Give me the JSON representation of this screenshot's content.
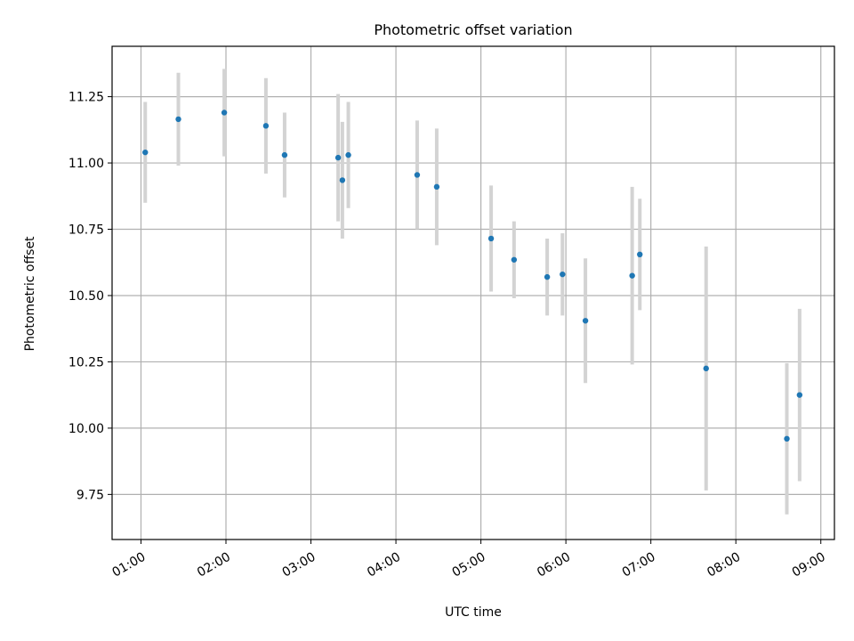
{
  "chart_data": {
    "type": "scatter",
    "title": "Photometric offset variation",
    "xlabel": "UTC time",
    "ylabel": "Photometric offset",
    "x_unit": "hours UTC",
    "xlim": [
      0.66,
      9.16
    ],
    "ylim": [
      9.58,
      11.44
    ],
    "x_ticks": [
      {
        "value": 1,
        "label": "01:00"
      },
      {
        "value": 2,
        "label": "02:00"
      },
      {
        "value": 3,
        "label": "03:00"
      },
      {
        "value": 4,
        "label": "04:00"
      },
      {
        "value": 5,
        "label": "05:00"
      },
      {
        "value": 6,
        "label": "06:00"
      },
      {
        "value": 7,
        "label": "07:00"
      },
      {
        "value": 8,
        "label": "08:00"
      },
      {
        "value": 9,
        "label": "09:00"
      }
    ],
    "y_ticks": [
      {
        "value": 9.75,
        "label": "9.75"
      },
      {
        "value": 10.0,
        "label": "10.00"
      },
      {
        "value": 10.25,
        "label": "10.25"
      },
      {
        "value": 10.5,
        "label": "10.50"
      },
      {
        "value": 10.75,
        "label": "10.75"
      },
      {
        "value": 11.0,
        "label": "11.00"
      },
      {
        "value": 11.25,
        "label": "11.25"
      }
    ],
    "grid": true,
    "point_color": "#1f77b4",
    "errorbar_color": "#d3d3d3",
    "series": [
      {
        "points": [
          {
            "x": 1.05,
            "y": 11.04,
            "err": 0.19
          },
          {
            "x": 1.44,
            "y": 11.165,
            "err": 0.175
          },
          {
            "x": 1.98,
            "y": 11.19,
            "err": 0.165
          },
          {
            "x": 2.47,
            "y": 11.14,
            "err": 0.18
          },
          {
            "x": 2.69,
            "y": 11.03,
            "err": 0.16
          },
          {
            "x": 3.32,
            "y": 11.02,
            "err": 0.24
          },
          {
            "x": 3.37,
            "y": 10.935,
            "err": 0.22
          },
          {
            "x": 3.44,
            "y": 11.03,
            "err": 0.2
          },
          {
            "x": 4.25,
            "y": 10.955,
            "err": 0.205
          },
          {
            "x": 4.48,
            "y": 10.91,
            "err": 0.22
          },
          {
            "x": 5.12,
            "y": 10.715,
            "err": 0.2
          },
          {
            "x": 5.39,
            "y": 10.635,
            "err": 0.145
          },
          {
            "x": 5.78,
            "y": 10.57,
            "err": 0.145
          },
          {
            "x": 5.96,
            "y": 10.58,
            "err": 0.155
          },
          {
            "x": 6.23,
            "y": 10.405,
            "err": 0.235
          },
          {
            "x": 6.78,
            "y": 10.575,
            "err": 0.335
          },
          {
            "x": 6.87,
            "y": 10.655,
            "err": 0.21
          },
          {
            "x": 7.65,
            "y": 10.225,
            "err": 0.46
          },
          {
            "x": 8.6,
            "y": 9.96,
            "err": 0.285
          },
          {
            "x": 8.75,
            "y": 10.125,
            "err": 0.325
          }
        ]
      }
    ]
  }
}
